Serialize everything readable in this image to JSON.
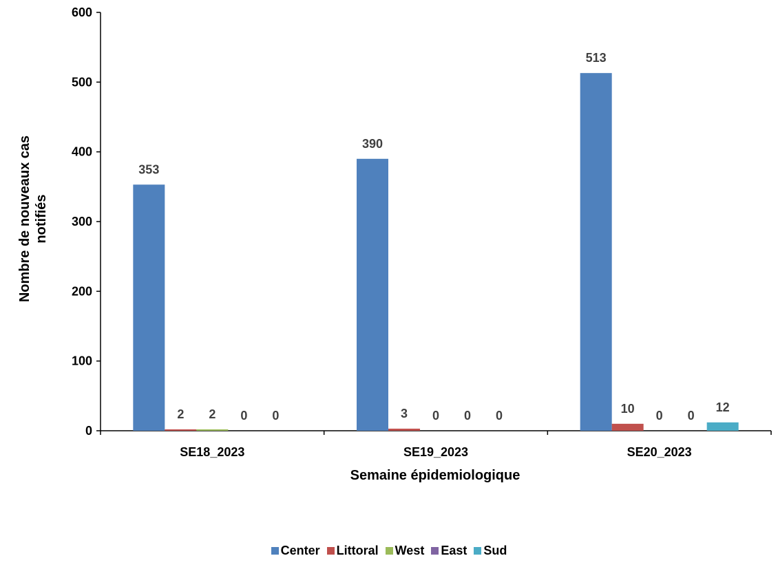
{
  "chart_data": {
    "type": "bar",
    "categories": [
      "SE18_2023",
      "SE19_2023",
      "SE20_2023"
    ],
    "series": [
      {
        "name": "Center",
        "color": "#4F81BD",
        "values": [
          353,
          390,
          513
        ]
      },
      {
        "name": "Littoral",
        "color": "#C0504D",
        "values": [
          2,
          3,
          10
        ]
      },
      {
        "name": "West",
        "color": "#9BBB59",
        "values": [
          2,
          0,
          0
        ]
      },
      {
        "name": "East",
        "color": "#8064A2",
        "values": [
          0,
          0,
          0
        ]
      },
      {
        "name": "Sud",
        "color": "#4BACC6",
        "values": [
          0,
          0,
          12
        ]
      }
    ],
    "xlabel": "Semaine épidemiologique",
    "ylabel_line1": "Nombre de nouveaux cas",
    "ylabel_line2": "notifiés",
    "ylim": [
      0,
      600
    ],
    "yticks": [
      0,
      100,
      200,
      300,
      400,
      500,
      600
    ],
    "grid": false,
    "legend_position": "bottom",
    "data_labels": [
      [
        "353",
        "390",
        "513"
      ],
      [
        "2",
        "3",
        "10"
      ],
      [
        "2",
        "0",
        "0"
      ],
      [
        "0",
        "0",
        "0"
      ],
      [
        "0",
        "0",
        "12"
      ]
    ]
  }
}
